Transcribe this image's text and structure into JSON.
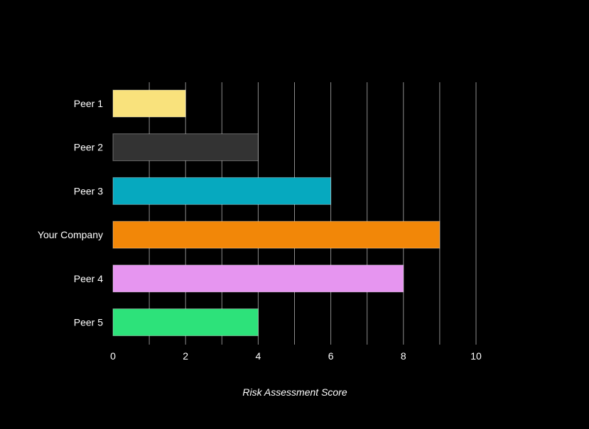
{
  "chart_data": {
    "type": "bar",
    "orientation": "horizontal",
    "categories": [
      "Peer 1",
      "Peer 2",
      "Peer 3",
      "Your Company",
      "Peer 4",
      "Peer 5"
    ],
    "values": [
      2,
      4,
      6,
      9,
      8,
      4
    ],
    "colors": [
      "#F9E27C",
      "#333333",
      "#06A9BF",
      "#F28708",
      "#E695F0",
      "#2DE27A"
    ],
    "xlabel": "Risk Assessment Score",
    "xlim": [
      0,
      12
    ],
    "xticks": [
      0,
      2,
      4,
      6,
      8,
      10
    ],
    "grid": "vertical",
    "colors_theme": {
      "background": "#000000",
      "grid": "#FFFFFF",
      "text": "#FFFFFF"
    }
  }
}
